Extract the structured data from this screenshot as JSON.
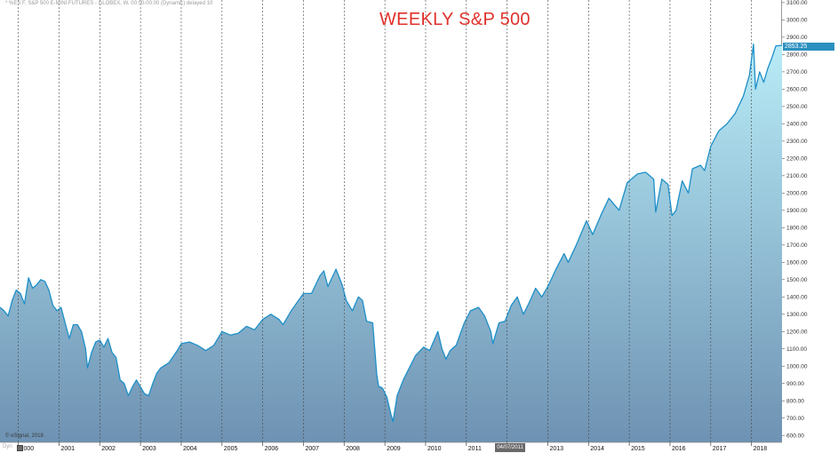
{
  "header_text": "* %ES F, S&P 500 E-MINI FUTURES - GLOBEX, W, 00:00-00:00 (Dynamic) delayed 10",
  "title": "WEEKLY S&P 500",
  "credit": "© eSignal, 2018",
  "toolbar_label": "Dyn",
  "price_tag": "2853.25",
  "cursor_date": "04/07/2011",
  "colors": {
    "line": "#1e8fc8",
    "fill_top": "#b8ecf7",
    "fill_bottom": "#6e92b3",
    "title": "#e0312b",
    "gridline": "#444444",
    "price_tag": "#2b8fbf"
  },
  "chart_data": {
    "type": "area",
    "title": "WEEKLY S&P 500",
    "xlabel": "",
    "ylabel": "",
    "x_range": [
      1999.55,
      2018.75
    ],
    "ylim": [
      560,
      3115
    ],
    "y_ticks": [
      600,
      700,
      800,
      900,
      1000,
      1100,
      1200,
      1300,
      1400,
      1500,
      1600,
      1700,
      1800,
      1900,
      2000,
      2100,
      2200,
      2300,
      2400,
      2500,
      2600,
      2700,
      2800,
      2900,
      3000,
      3100
    ],
    "x_ticks": [
      "2000",
      "2001",
      "2002",
      "2003",
      "2004",
      "2005",
      "2006",
      "2007",
      "2008",
      "2009",
      "2010",
      "2011",
      "2012",
      "2013",
      "2014",
      "2015",
      "2016",
      "2017",
      "2018"
    ],
    "vertical_gridlines": true,
    "last_value": 2853.25,
    "series": [
      {
        "points": [
          [
            1999.55,
            1340
          ],
          [
            1999.65,
            1320
          ],
          [
            1999.75,
            1290
          ],
          [
            1999.85,
            1380
          ],
          [
            1999.95,
            1440
          ],
          [
            2000.05,
            1420
          ],
          [
            2000.15,
            1360
          ],
          [
            2000.25,
            1510
          ],
          [
            2000.35,
            1450
          ],
          [
            2000.45,
            1470
          ],
          [
            2000.55,
            1500
          ],
          [
            2000.65,
            1490
          ],
          [
            2000.75,
            1440
          ],
          [
            2000.85,
            1350
          ],
          [
            2000.95,
            1320
          ],
          [
            2001.05,
            1340
          ],
          [
            2001.15,
            1250
          ],
          [
            2001.25,
            1160
          ],
          [
            2001.35,
            1240
          ],
          [
            2001.45,
            1240
          ],
          [
            2001.55,
            1200
          ],
          [
            2001.65,
            1100
          ],
          [
            2001.7,
            990
          ],
          [
            2001.8,
            1080
          ],
          [
            2001.9,
            1140
          ],
          [
            2002.0,
            1150
          ],
          [
            2002.1,
            1110
          ],
          [
            2002.2,
            1160
          ],
          [
            2002.3,
            1080
          ],
          [
            2002.4,
            1050
          ],
          [
            2002.5,
            920
          ],
          [
            2002.6,
            900
          ],
          [
            2002.7,
            830
          ],
          [
            2002.8,
            880
          ],
          [
            2002.9,
            920
          ],
          [
            2003.0,
            880
          ],
          [
            2003.1,
            840
          ],
          [
            2003.2,
            830
          ],
          [
            2003.3,
            900
          ],
          [
            2003.4,
            960
          ],
          [
            2003.5,
            990
          ],
          [
            2003.7,
            1020
          ],
          [
            2003.9,
            1090
          ],
          [
            2004.0,
            1130
          ],
          [
            2004.2,
            1140
          ],
          [
            2004.4,
            1120
          ],
          [
            2004.6,
            1090
          ],
          [
            2004.8,
            1120
          ],
          [
            2005.0,
            1200
          ],
          [
            2005.2,
            1180
          ],
          [
            2005.4,
            1190
          ],
          [
            2005.6,
            1230
          ],
          [
            2005.8,
            1210
          ],
          [
            2006.0,
            1270
          ],
          [
            2006.2,
            1300
          ],
          [
            2006.4,
            1270
          ],
          [
            2006.5,
            1240
          ],
          [
            2006.7,
            1320
          ],
          [
            2007.0,
            1420
          ],
          [
            2007.2,
            1420
          ],
          [
            2007.4,
            1520
          ],
          [
            2007.5,
            1550
          ],
          [
            2007.6,
            1460
          ],
          [
            2007.8,
            1560
          ],
          [
            2007.95,
            1470
          ],
          [
            2008.05,
            1380
          ],
          [
            2008.2,
            1320
          ],
          [
            2008.35,
            1400
          ],
          [
            2008.45,
            1380
          ],
          [
            2008.55,
            1260
          ],
          [
            2008.7,
            1250
          ],
          [
            2008.75,
            1100
          ],
          [
            2008.8,
            950
          ],
          [
            2008.85,
            880
          ],
          [
            2008.9,
            880
          ],
          [
            2008.95,
            870
          ],
          [
            2009.05,
            820
          ],
          [
            2009.15,
            720
          ],
          [
            2009.2,
            680
          ],
          [
            2009.3,
            830
          ],
          [
            2009.45,
            920
          ],
          [
            2009.6,
            990
          ],
          [
            2009.75,
            1060
          ],
          [
            2009.95,
            1110
          ],
          [
            2010.1,
            1090
          ],
          [
            2010.3,
            1200
          ],
          [
            2010.4,
            1100
          ],
          [
            2010.5,
            1040
          ],
          [
            2010.6,
            1090
          ],
          [
            2010.75,
            1120
          ],
          [
            2010.95,
            1250
          ],
          [
            2011.1,
            1320
          ],
          [
            2011.3,
            1340
          ],
          [
            2011.45,
            1290
          ],
          [
            2011.6,
            1200
          ],
          [
            2011.65,
            1130
          ],
          [
            2011.8,
            1250
          ],
          [
            2011.95,
            1260
          ],
          [
            2012.1,
            1350
          ],
          [
            2012.25,
            1400
          ],
          [
            2012.4,
            1300
          ],
          [
            2012.55,
            1370
          ],
          [
            2012.7,
            1450
          ],
          [
            2012.85,
            1400
          ],
          [
            2013.0,
            1460
          ],
          [
            2013.2,
            1560
          ],
          [
            2013.4,
            1650
          ],
          [
            2013.5,
            1600
          ],
          [
            2013.7,
            1700
          ],
          [
            2013.95,
            1840
          ],
          [
            2014.1,
            1760
          ],
          [
            2014.3,
            1870
          ],
          [
            2014.5,
            1970
          ],
          [
            2014.75,
            1900
          ],
          [
            2014.95,
            2060
          ],
          [
            2015.2,
            2110
          ],
          [
            2015.4,
            2120
          ],
          [
            2015.6,
            2080
          ],
          [
            2015.65,
            1890
          ],
          [
            2015.8,
            2080
          ],
          [
            2015.95,
            2050
          ],
          [
            2016.05,
            1870
          ],
          [
            2016.15,
            1900
          ],
          [
            2016.3,
            2070
          ],
          [
            2016.45,
            2000
          ],
          [
            2016.55,
            2140
          ],
          [
            2016.75,
            2160
          ],
          [
            2016.85,
            2130
          ],
          [
            2017.0,
            2270
          ],
          [
            2017.2,
            2360
          ],
          [
            2017.4,
            2400
          ],
          [
            2017.6,
            2460
          ],
          [
            2017.8,
            2560
          ],
          [
            2017.95,
            2680
          ],
          [
            2018.05,
            2860
          ],
          [
            2018.1,
            2600
          ],
          [
            2018.2,
            2700
          ],
          [
            2018.3,
            2640
          ],
          [
            2018.4,
            2720
          ],
          [
            2018.5,
            2780
          ],
          [
            2018.6,
            2850
          ],
          [
            2018.75,
            2853
          ]
        ]
      }
    ]
  }
}
